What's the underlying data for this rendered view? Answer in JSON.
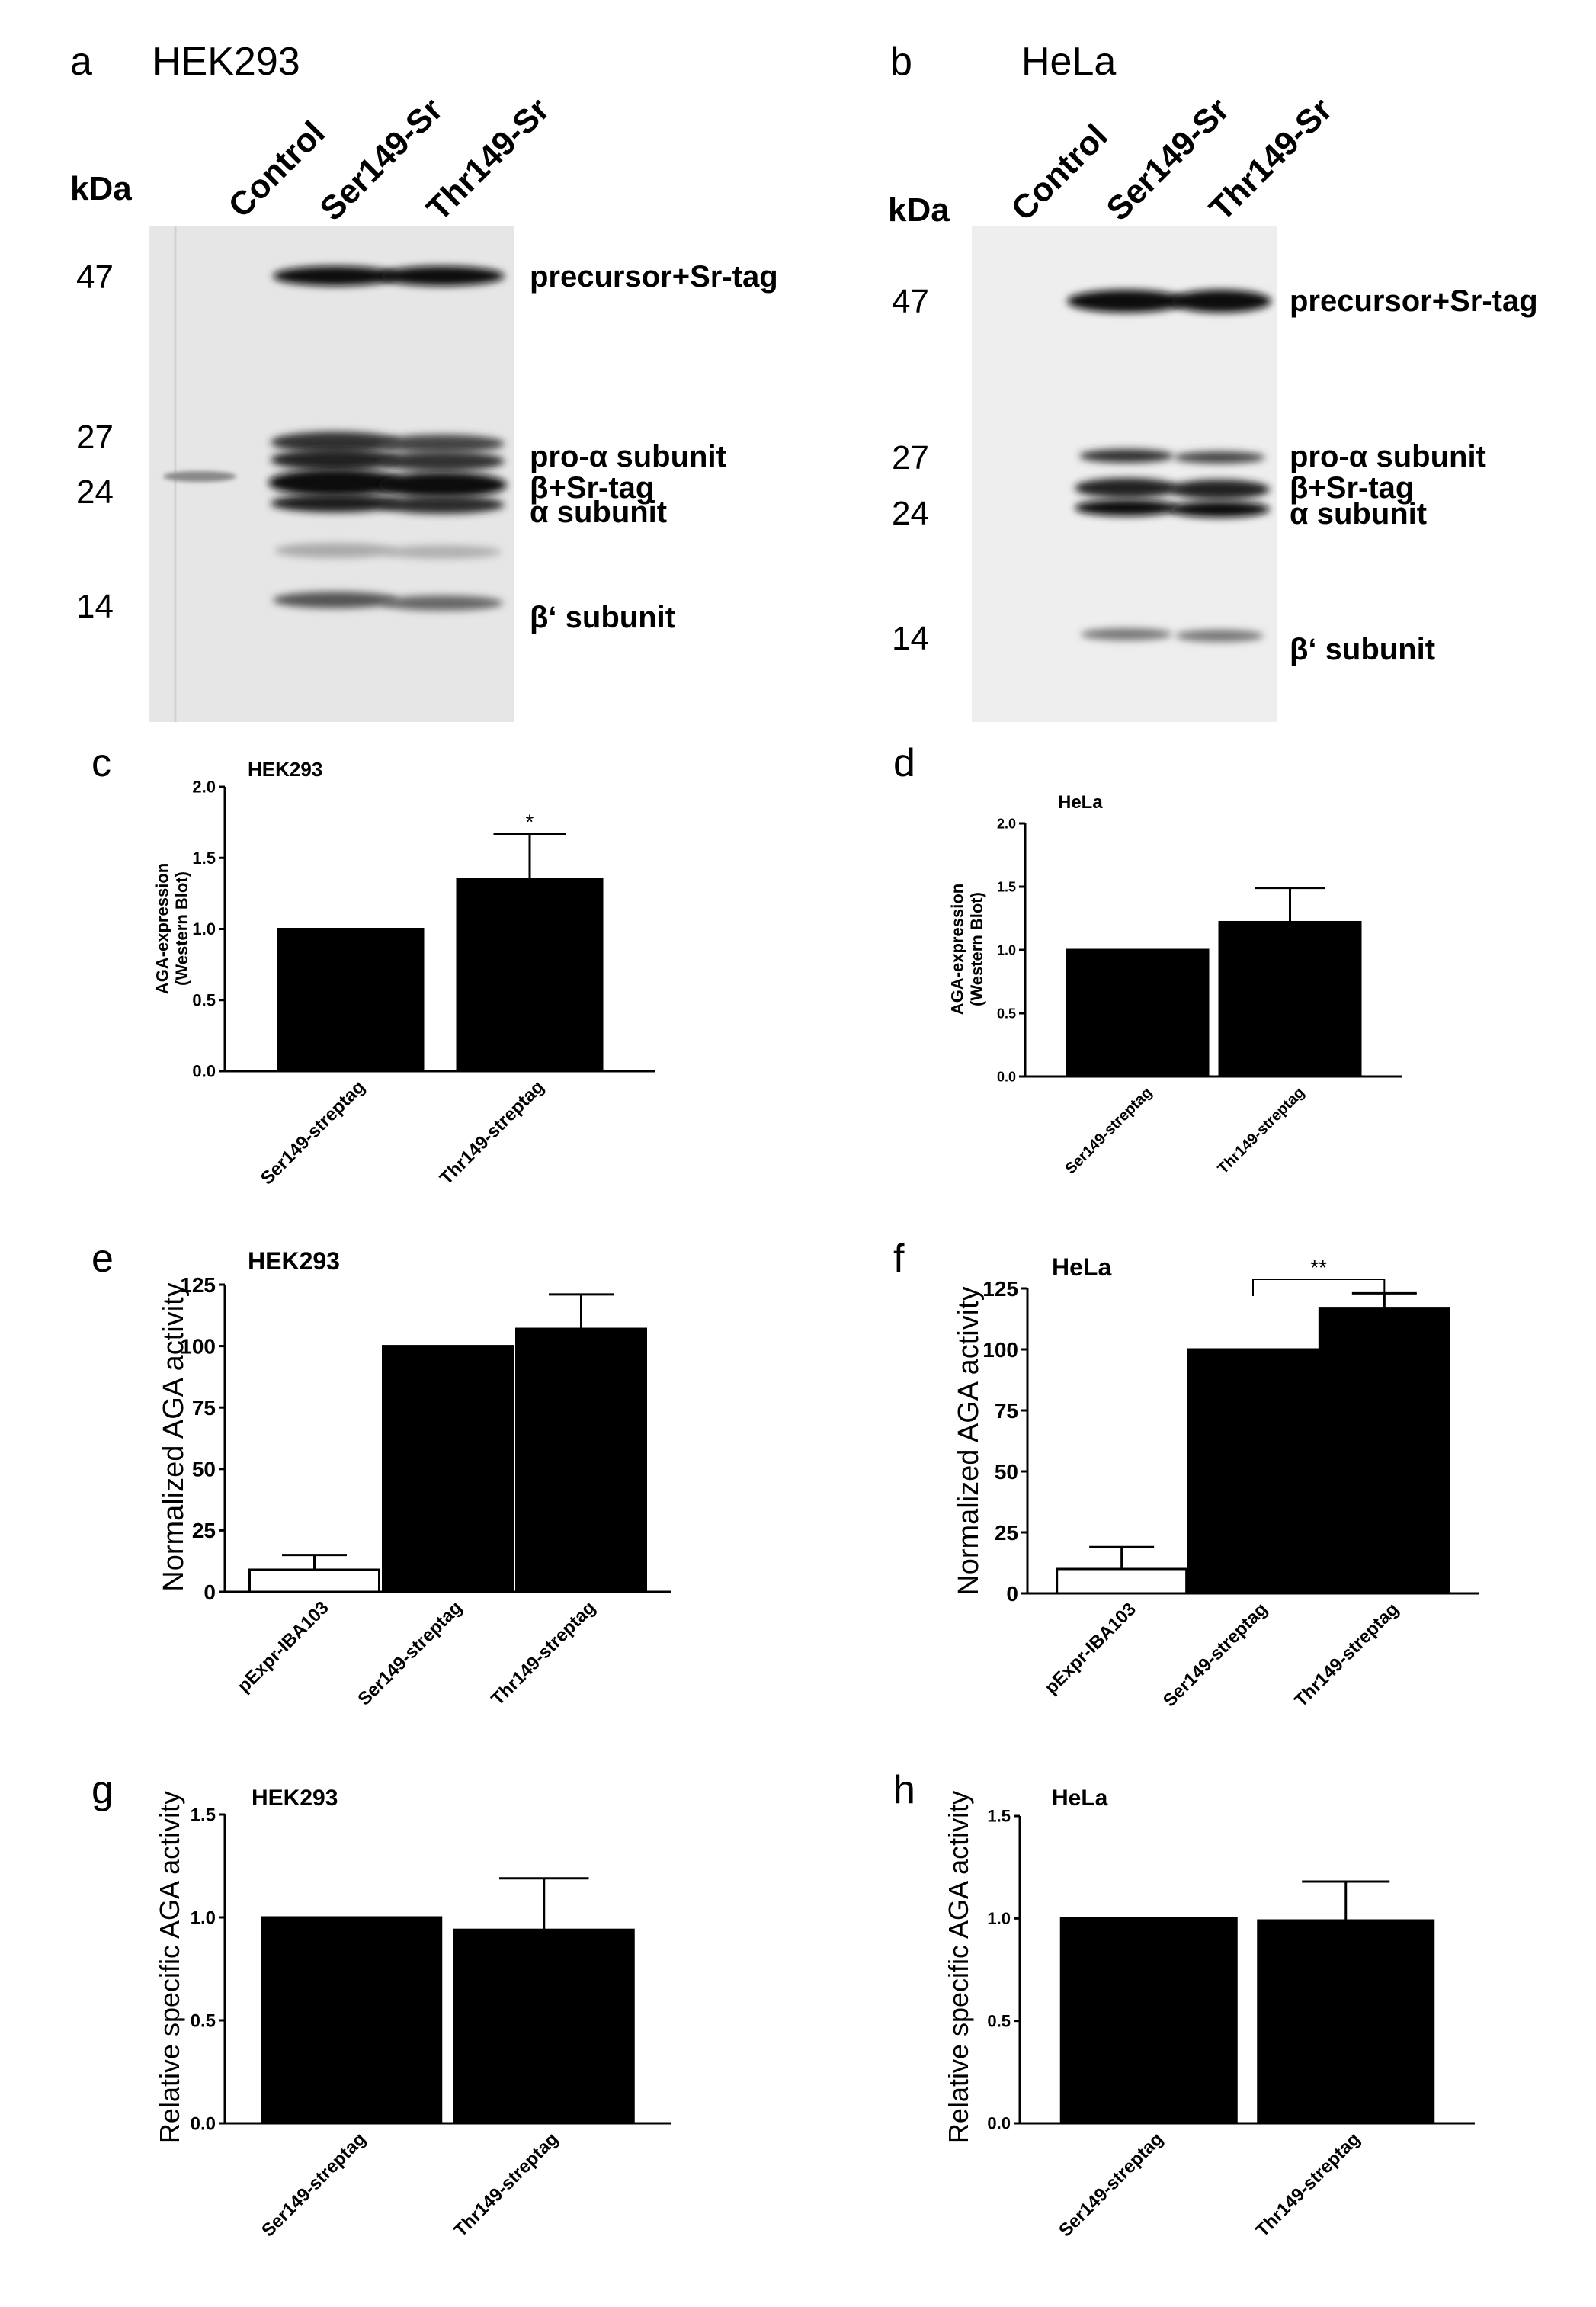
{
  "figure": {
    "panel_letters": [
      "a",
      "b",
      "c",
      "d",
      "e",
      "f",
      "g",
      "h"
    ]
  },
  "blots": [
    {
      "letter": "a",
      "title": "HEK293",
      "kda_label": "kDa",
      "lane_labels": [
        "Control",
        "Ser149-Sr",
        "Thr149-Sr"
      ],
      "markers": [
        "47",
        "27",
        "24",
        "14"
      ],
      "band_labels": [
        "precursor+Sr-tag",
        "pro-α subunit",
        "β+Sr-tag",
        "α subunit",
        "β‘ subunit"
      ]
    },
    {
      "letter": "b",
      "title": "HeLa",
      "kda_label": "kDa",
      "lane_labels": [
        "Control",
        "Ser149-Sr",
        "Thr149-Sr"
      ],
      "markers": [
        "47",
        "27",
        "24",
        "14"
      ],
      "band_labels": [
        "precursor+Sr-tag",
        "pro-α subunit",
        "β+Sr-tag",
        "α subunit",
        "β‘ subunit"
      ]
    }
  ],
  "chart_data": [
    {
      "letter": "c",
      "type": "bar",
      "title": "HEK293",
      "ylabel": "AGA-expression\n(Western Blot)",
      "categories": [
        "Ser149-streptag",
        "Thr149-streptag"
      ],
      "values": [
        1.0,
        1.35
      ],
      "errors": [
        0,
        0.32
      ],
      "fills": [
        "#000000",
        "#000000"
      ],
      "ylim": [
        0,
        2.0
      ],
      "yticks": [
        "0.0",
        "0.5",
        "1.0",
        "1.5",
        "2.0"
      ],
      "significance": [
        {
          "over": 1,
          "label": "*"
        }
      ]
    },
    {
      "letter": "d",
      "type": "bar",
      "title": "HeLa",
      "ylabel": "AGA-expression\n(Western Blot)",
      "categories": [
        "Ser149-streptag",
        "Thr149-streptag"
      ],
      "values": [
        1.0,
        1.22
      ],
      "errors": [
        0,
        0.27
      ],
      "fills": [
        "#000000",
        "#000000"
      ],
      "ylim": [
        0,
        2.0
      ],
      "yticks": [
        "0.0",
        "0.5",
        "1.0",
        "1.5",
        "2.0"
      ],
      "significance": []
    },
    {
      "letter": "e",
      "type": "bar",
      "title": "HEK293",
      "ylabel": "Normalized AGA activity",
      "categories": [
        "pExpr-IBA103",
        "Ser149-streptag",
        "Thr149-streptag"
      ],
      "values": [
        9,
        100,
        107
      ],
      "errors": [
        6,
        0,
        14
      ],
      "fills": [
        "#ffffff",
        "#000000",
        "#000000"
      ],
      "ylim": [
        0,
        125
      ],
      "yticks": [
        "0",
        "25",
        "50",
        "75",
        "100",
        "125"
      ],
      "significance": []
    },
    {
      "letter": "f",
      "type": "bar",
      "title": "HeLa",
      "ylabel": "Normalized AGA activity",
      "categories": [
        "pExpr-IBA103",
        "Ser149-streptag",
        "Thr149-streptag"
      ],
      "values": [
        10,
        100,
        117
      ],
      "errors": [
        9,
        0,
        6
      ],
      "fills": [
        "#ffffff",
        "#000000",
        "#000000"
      ],
      "ylim": [
        0,
        125
      ],
      "yticks": [
        "0",
        "25",
        "50",
        "75",
        "100",
        "125"
      ],
      "significance": [
        {
          "from": 1,
          "to": 2,
          "label": "**"
        }
      ]
    },
    {
      "letter": "g",
      "type": "bar",
      "title": "HEK293",
      "ylabel": "Relative specific AGA activity",
      "categories": [
        "Ser149-streptag",
        "Thr149-streptag"
      ],
      "values": [
        1.0,
        0.94
      ],
      "errors": [
        0,
        0.25
      ],
      "fills": [
        "#000000",
        "#000000"
      ],
      "ylim": [
        0,
        1.5
      ],
      "yticks": [
        "0.0",
        "0.5",
        "1.0",
        "1.5"
      ],
      "significance": []
    },
    {
      "letter": "h",
      "type": "bar",
      "title": "HeLa",
      "ylabel": "Relative specific AGA activity",
      "categories": [
        "Ser149-streptag",
        "Thr149-streptag"
      ],
      "values": [
        1.0,
        0.99
      ],
      "errors": [
        0,
        0.19
      ],
      "fills": [
        "#000000",
        "#000000"
      ],
      "ylim": [
        0,
        1.5
      ],
      "yticks": [
        "0.0",
        "0.5",
        "1.0",
        "1.5"
      ],
      "significance": []
    }
  ]
}
